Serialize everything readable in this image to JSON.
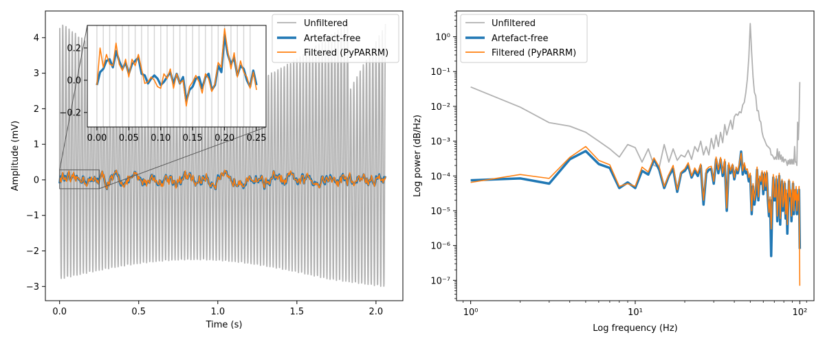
{
  "chart_data": [
    {
      "type": "line",
      "xlabel": "Time (s)",
      "ylabel": "Amplitude (mV)",
      "xlim": [
        -0.09,
        2.17
      ],
      "ylim": [
        -3.4,
        4.75
      ],
      "xticks": [
        0.0,
        0.5,
        1.0,
        1.5,
        2.0
      ],
      "xtick_labels": [
        "0.0",
        "0.5",
        "1.0",
        "1.5",
        "2.0"
      ],
      "yticks": [
        -3,
        -2,
        -1,
        0,
        1,
        2,
        3,
        4
      ],
      "ytick_labels": [
        "−3",
        "−2",
        "−1",
        "0",
        "1",
        "2",
        "3",
        "4"
      ],
      "legend": {
        "placement": "top-right",
        "entries": [
          "Unfiltered",
          "Artefact-free",
          "Filtered (PyPARRM)"
        ]
      },
      "series": [
        {
          "name": "Unfiltered",
          "color": "#b0b0b0",
          "description": "stimulation artefact ~ 50 Hz oscillation, amplitude ~3.5 mV with slow envelope",
          "x_range": [
            0,
            2.06
          ]
        },
        {
          "name": "Artefact-free",
          "color": "#1f77b4",
          "x_range": [
            0,
            2.06
          ],
          "amplitude": 0.2
        },
        {
          "name": "Filtered (PyPARRM)",
          "color": "#ff7f0e",
          "x_range": [
            0,
            2.06
          ],
          "amplitude": 0.2
        }
      ],
      "inset": {
        "xlim": [
          -0.015,
          0.265
        ],
        "ylim": [
          -0.29,
          0.34
        ],
        "xticks": [
          0.0,
          0.05,
          0.1,
          0.15,
          0.2,
          0.25
        ],
        "xtick_labels": [
          "0.00",
          "0.05",
          "0.10",
          "0.15",
          "0.20",
          "0.25"
        ],
        "yticks": [
          -0.2,
          0.0,
          0.2
        ],
        "ytick_labels": [
          "−0.2",
          "0.0",
          "0.2"
        ],
        "zoom_region": {
          "x": [
            0,
            0.25
          ],
          "y": [
            -0.25,
            0.28
          ]
        },
        "artefact_free": {
          "x": [
            0.0,
            0.005,
            0.01,
            0.015,
            0.02,
            0.025,
            0.03,
            0.035,
            0.04,
            0.045,
            0.05,
            0.055,
            0.06,
            0.065,
            0.07,
            0.075,
            0.08,
            0.085,
            0.09,
            0.095,
            0.1,
            0.105,
            0.11,
            0.115,
            0.12,
            0.125,
            0.13,
            0.135,
            0.14,
            0.145,
            0.15,
            0.155,
            0.16,
            0.165,
            0.17,
            0.175,
            0.18,
            0.185,
            0.19,
            0.195,
            0.2,
            0.205,
            0.21,
            0.215,
            0.22,
            0.225,
            0.23,
            0.235,
            0.24,
            0.245,
            0.25
          ],
          "y": [
            -0.03,
            0.05,
            0.07,
            0.12,
            0.13,
            0.08,
            0.18,
            0.12,
            0.07,
            0.11,
            0.04,
            0.1,
            0.12,
            0.14,
            0.04,
            0.03,
            -0.02,
            0.01,
            0.03,
            0.01,
            -0.03,
            -0.01,
            0.02,
            0.05,
            -0.02,
            0.04,
            -0.02,
            0.02,
            -0.13,
            -0.06,
            -0.04,
            0.01,
            0.02,
            -0.05,
            0.02,
            0.04,
            -0.06,
            -0.03,
            0.09,
            0.05,
            0.28,
            0.16,
            0.1,
            0.14,
            0.03,
            0.09,
            0.07,
            0.0,
            -0.04,
            0.06,
            -0.03
          ]
        },
        "filtered": {
          "x": [
            0.0,
            0.005,
            0.01,
            0.015,
            0.02,
            0.025,
            0.03,
            0.035,
            0.04,
            0.045,
            0.05,
            0.055,
            0.06,
            0.065,
            0.07,
            0.075,
            0.08,
            0.085,
            0.09,
            0.095,
            0.1,
            0.105,
            0.11,
            0.115,
            0.12,
            0.125,
            0.13,
            0.135,
            0.14,
            0.145,
            0.15,
            0.155,
            0.16,
            0.165,
            0.17,
            0.175,
            0.18,
            0.185,
            0.19,
            0.195,
            0.2,
            0.205,
            0.21,
            0.215,
            0.22,
            0.225,
            0.23,
            0.235,
            0.24,
            0.245,
            0.25
          ],
          "y": [
            -0.03,
            0.2,
            0.08,
            0.16,
            0.1,
            0.09,
            0.23,
            0.1,
            0.06,
            0.13,
            0.02,
            0.13,
            0.09,
            0.16,
            0.07,
            -0.02,
            -0.01,
            0.02,
            0.0,
            -0.04,
            -0.05,
            0.04,
            0.01,
            0.07,
            -0.05,
            0.04,
            -0.02,
            0.0,
            -0.16,
            -0.04,
            -0.01,
            0.03,
            -0.01,
            -0.08,
            0.04,
            0.01,
            -0.07,
            -0.02,
            0.11,
            0.08,
            0.32,
            0.18,
            0.07,
            0.17,
            0.02,
            0.12,
            0.05,
            0.02,
            -0.05,
            0.05,
            -0.06
          ]
        }
      }
    },
    {
      "type": "line",
      "xlabel": "Log frequency (Hz)",
      "ylabel": "Log power (dB/Hz)",
      "xscale": "log",
      "yscale": "log",
      "xlim": [
        0.82,
        122
      ],
      "ylim": [
        2.6e-08,
        5.5
      ],
      "xtick_labels": [
        "10⁰",
        "10¹",
        "10²"
      ],
      "ytick_labels": [
        "10⁻⁷",
        "10⁻⁶",
        "10⁻⁵",
        "10⁻⁴",
        "10⁻³",
        "10⁻²",
        "10⁻¹",
        "10⁰"
      ],
      "legend": {
        "placement": "top-left",
        "entries": [
          "Unfiltered",
          "Artefact-free",
          "Filtered (PyPARRM)"
        ]
      },
      "series": [
        {
          "name": "Unfiltered",
          "color": "#b0b0b0",
          "x": [
            1,
            2,
            3,
            4,
            5,
            6,
            7,
            8,
            9,
            10,
            11,
            12,
            13,
            14,
            15,
            16,
            17,
            18,
            19,
            20,
            21,
            22,
            23,
            24,
            25,
            26,
            27,
            28,
            29,
            30,
            31,
            32,
            33,
            34,
            35,
            36,
            37,
            38,
            39,
            40,
            41,
            42,
            43,
            44,
            45,
            46,
            47,
            48,
            49,
            50,
            51,
            52,
            53,
            54,
            55,
            56,
            57,
            58,
            59,
            60,
            61,
            62,
            63,
            64,
            65,
            66,
            67,
            68,
            69,
            70,
            71,
            72,
            73,
            74,
            75,
            76,
            77,
            78,
            79,
            80,
            81,
            82,
            83,
            84,
            85,
            86,
            87,
            88,
            89,
            90,
            91,
            92,
            93,
            94,
            95,
            96,
            97,
            98,
            99,
            100
          ],
          "y": [
            0.036,
            0.0095,
            0.0034,
            0.0027,
            0.0018,
            0.001,
            0.0006,
            0.00035,
            0.0008,
            0.00065,
            0.00025,
            0.0006,
            0.0002,
            0.00018,
            0.0008,
            0.00025,
            0.0006,
            0.00028,
            0.0004,
            0.00035,
            0.00055,
            0.0003,
            0.0007,
            0.0005,
            0.001,
            0.0004,
            0.0007,
            0.0004,
            0.0012,
            0.0006,
            0.0015,
            0.0007,
            0.0018,
            0.0009,
            0.003,
            0.0015,
            0.0025,
            0.004,
            0.0022,
            0.005,
            0.006,
            0.0055,
            0.007,
            0.0065,
            0.011,
            0.013,
            0.025,
            0.06,
            0.25,
            2.4,
            0.35,
            0.07,
            0.025,
            0.02,
            0.0075,
            0.0075,
            0.004,
            0.0035,
            0.0018,
            0.0013,
            0.0011,
            0.0009,
            0.00075,
            0.0007,
            0.00065,
            0.0006,
            0.0004,
            0.0004,
            0.00035,
            0.0003,
            0.00035,
            0.0003,
            0.0006,
            0.0003,
            0.0005,
            0.0003,
            0.0004,
            0.00026,
            0.00035,
            0.00025,
            0.0003,
            0.0003,
            0.00025,
            0.0002,
            0.00028,
            0.00022,
            0.0003,
            0.00022,
            0.0003,
            0.00022,
            0.0003,
            0.00022,
            0.0007,
            0.00025,
            0.00025,
            0.0002,
            0.0035,
            0.0011,
            0.004,
            0.05
          ]
        },
        {
          "name": "Artefact-free",
          "color": "#1f77b4",
          "x": [
            1,
            2,
            3,
            4,
            5,
            6,
            7,
            8,
            9,
            10,
            11,
            12,
            13,
            14,
            15,
            16,
            17,
            18,
            19,
            20,
            21,
            22,
            23,
            24,
            25,
            26,
            27,
            28,
            29,
            30,
            31,
            32,
            33,
            34,
            35,
            36,
            37,
            38,
            39,
            40,
            41,
            42,
            43,
            44,
            45,
            46,
            47,
            48,
            49,
            50,
            51,
            52,
            53,
            54,
            55,
            56,
            57,
            58,
            59,
            60,
            61,
            62,
            63,
            64,
            65,
            66,
            67,
            68,
            69,
            70,
            71,
            72,
            73,
            74,
            75,
            76,
            77,
            78,
            79,
            80,
            81,
            82,
            83,
            84,
            85,
            86,
            87,
            88,
            89,
            90,
            91,
            92,
            93,
            94,
            95,
            96,
            97,
            98,
            99,
            100
          ],
          "y": [
            7.5e-05,
            8.5e-05,
            6e-05,
            0.0003,
            0.00052,
            0.00022,
            0.00017,
            4.5e-05,
            6.5e-05,
            4.5e-05,
            0.00014,
            0.00011,
            0.0003,
            0.00015,
            4.5e-05,
            0.0001,
            0.00016,
            3.5e-05,
            0.00012,
            0.00014,
            0.0002,
            9e-05,
            0.00014,
            0.0001,
            0.0002,
            1.5e-05,
            0.00012,
            0.00015,
            0.00016,
            6e-05,
            0.0003,
            0.00012,
            0.0003,
            0.0001,
            0.00025,
            1e-05,
            0.0002,
            0.00012,
            0.0002,
            8e-05,
            0.00015,
            0.00012,
            0.0002,
            0.0005,
            0.00011,
            0.0002,
            0.00012,
            0.00013,
            7e-05,
            0.0001,
            8e-06,
            5e-05,
            1.5e-05,
            3e-05,
            0.00015,
            2e-05,
            8e-05,
            6e-05,
            0.00012,
            3e-05,
            0.00011,
            4e-05,
            0.00012,
            2e-05,
            7e-06,
            2e-05,
            5e-07,
            1.5e-05,
            9e-05,
            2e-05,
            2e-05,
            8e-05,
            5e-06,
            2e-05,
            0.0001,
            4e-06,
            2.5e-05,
            7e-05,
            1e-05,
            1.5e-05,
            6e-05,
            6e-06,
            3e-05,
            2.2e-06,
            1.5e-05,
            7e-05,
            2e-05,
            3e-05,
            5e-06,
            2e-05,
            6e-05,
            8e-06,
            3e-05,
            1.5e-05,
            4e-05,
            8e-06,
            2.5e-05,
            1.5e-05,
            4e-05,
            8e-07
          ]
        },
        {
          "name": "Filtered (PyPARRM)",
          "color": "#ff7f0e",
          "x": [
            1,
            2,
            3,
            4,
            5,
            6,
            7,
            8,
            9,
            10,
            11,
            12,
            13,
            14,
            15,
            16,
            17,
            18,
            19,
            20,
            21,
            22,
            23,
            24,
            25,
            26,
            27,
            28,
            29,
            30,
            31,
            32,
            33,
            34,
            35,
            36,
            37,
            38,
            39,
            40,
            41,
            42,
            43,
            44,
            45,
            46,
            47,
            48,
            49,
            50,
            51,
            52,
            53,
            54,
            55,
            56,
            57,
            58,
            59,
            60,
            61,
            62,
            63,
            64,
            65,
            66,
            67,
            68,
            69,
            70,
            71,
            72,
            73,
            74,
            75,
            76,
            77,
            78,
            79,
            80,
            81,
            82,
            83,
            84,
            85,
            86,
            87,
            88,
            89,
            90,
            91,
            92,
            93,
            94,
            95,
            96,
            97,
            98,
            99,
            100
          ],
          "y": [
            6.5e-05,
            0.00011,
            8.5e-05,
            0.00034,
            0.0007,
            0.00028,
            0.00021,
            5e-05,
            6e-05,
            5e-05,
            0.00018,
            0.00013,
            0.00033,
            0.00018,
            5e-05,
            0.00011,
            0.0002,
            4e-05,
            0.00013,
            0.00016,
            0.00024,
            0.0001,
            0.00017,
            0.00012,
            0.00022,
            2e-05,
            0.00015,
            0.00018,
            0.00019,
            7e-05,
            0.00035,
            0.00015,
            0.00034,
            0.00012,
            0.0003,
            1.2e-05,
            0.00024,
            0.00014,
            0.00022,
            9e-05,
            0.00018,
            0.00014,
            0.00024,
            0.00045,
            0.00014,
            0.00024,
            0.00015,
            0.00016,
            9e-05,
            0.00012,
            1e-05,
            6e-05,
            2e-05,
            4e-05,
            0.00018,
            2.5e-05,
            0.0001,
            7e-05,
            0.00014,
            4e-05,
            0.00013,
            5e-05,
            0.00014,
            2.5e-05,
            9e-06,
            2.5e-05,
            3e-06,
            2e-05,
            0.00011,
            2.5e-05,
            2.5e-05,
            0.0001,
            7e-06,
            2.5e-05,
            0.00012,
            6e-06,
            3e-05,
            8e-05,
            1.3e-05,
            2e-05,
            7e-05,
            8e-06,
            4e-05,
            4e-06,
            2e-05,
            8e-05,
            2.5e-05,
            4e-05,
            7e-06,
            2.5e-05,
            7e-05,
            1e-05,
            4e-05,
            2e-05,
            5e-05,
            1e-05,
            3e-05,
            2e-05,
            5e-05,
            7e-08
          ]
        }
      ]
    }
  ]
}
